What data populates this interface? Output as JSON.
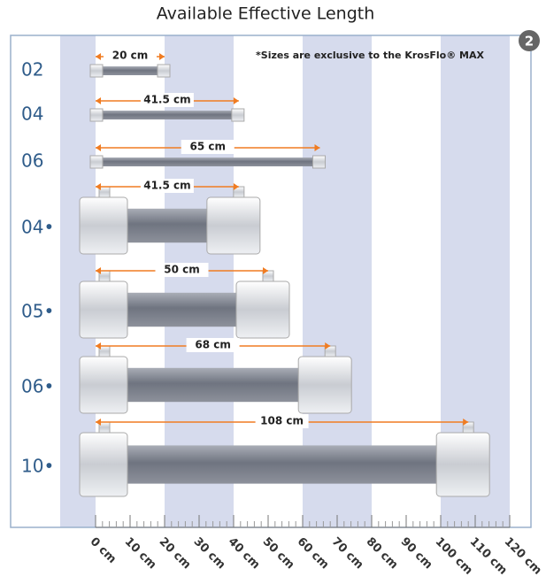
{
  "chart_data": {
    "type": "bar",
    "title": "Available Effective Length",
    "note": "*Sizes are exclusive to the KrosFlo® MAX",
    "badge": "2",
    "categories": [
      "02",
      "04",
      "06",
      "04•",
      "05•",
      "06•",
      "10•"
    ],
    "values": [
      20,
      41.5,
      65,
      41.5,
      50,
      68,
      108
    ],
    "value_labels": [
      "20 cm",
      "41.5 cm",
      "65 cm",
      "41.5 cm",
      "50 cm",
      "68 cm",
      "108 cm"
    ],
    "color": "#7a7f8c",
    "arrow_color": "#f07c22",
    "xlim": [
      0,
      120
    ],
    "xticks": [
      {
        "value": 0,
        "label": "0 cm"
      },
      {
        "value": 10,
        "label": "10 cm"
      },
      {
        "value": 20,
        "label": "20 cm"
      },
      {
        "value": 30,
        "label": "30 cm"
      },
      {
        "value": 40,
        "label": "40 cm"
      },
      {
        "value": 50,
        "label": "50 cm"
      },
      {
        "value": 60,
        "label": "60 cm"
      },
      {
        "value": 70,
        "label": "70 cm"
      },
      {
        "value": 80,
        "label": "80 cm"
      },
      {
        "value": 90,
        "label": "90 cm"
      },
      {
        "value": 100,
        "label": "100 cm"
      },
      {
        "value": 110,
        "label": "110 cm"
      },
      {
        "value": 120,
        "label": "120 cm"
      }
    ]
  }
}
